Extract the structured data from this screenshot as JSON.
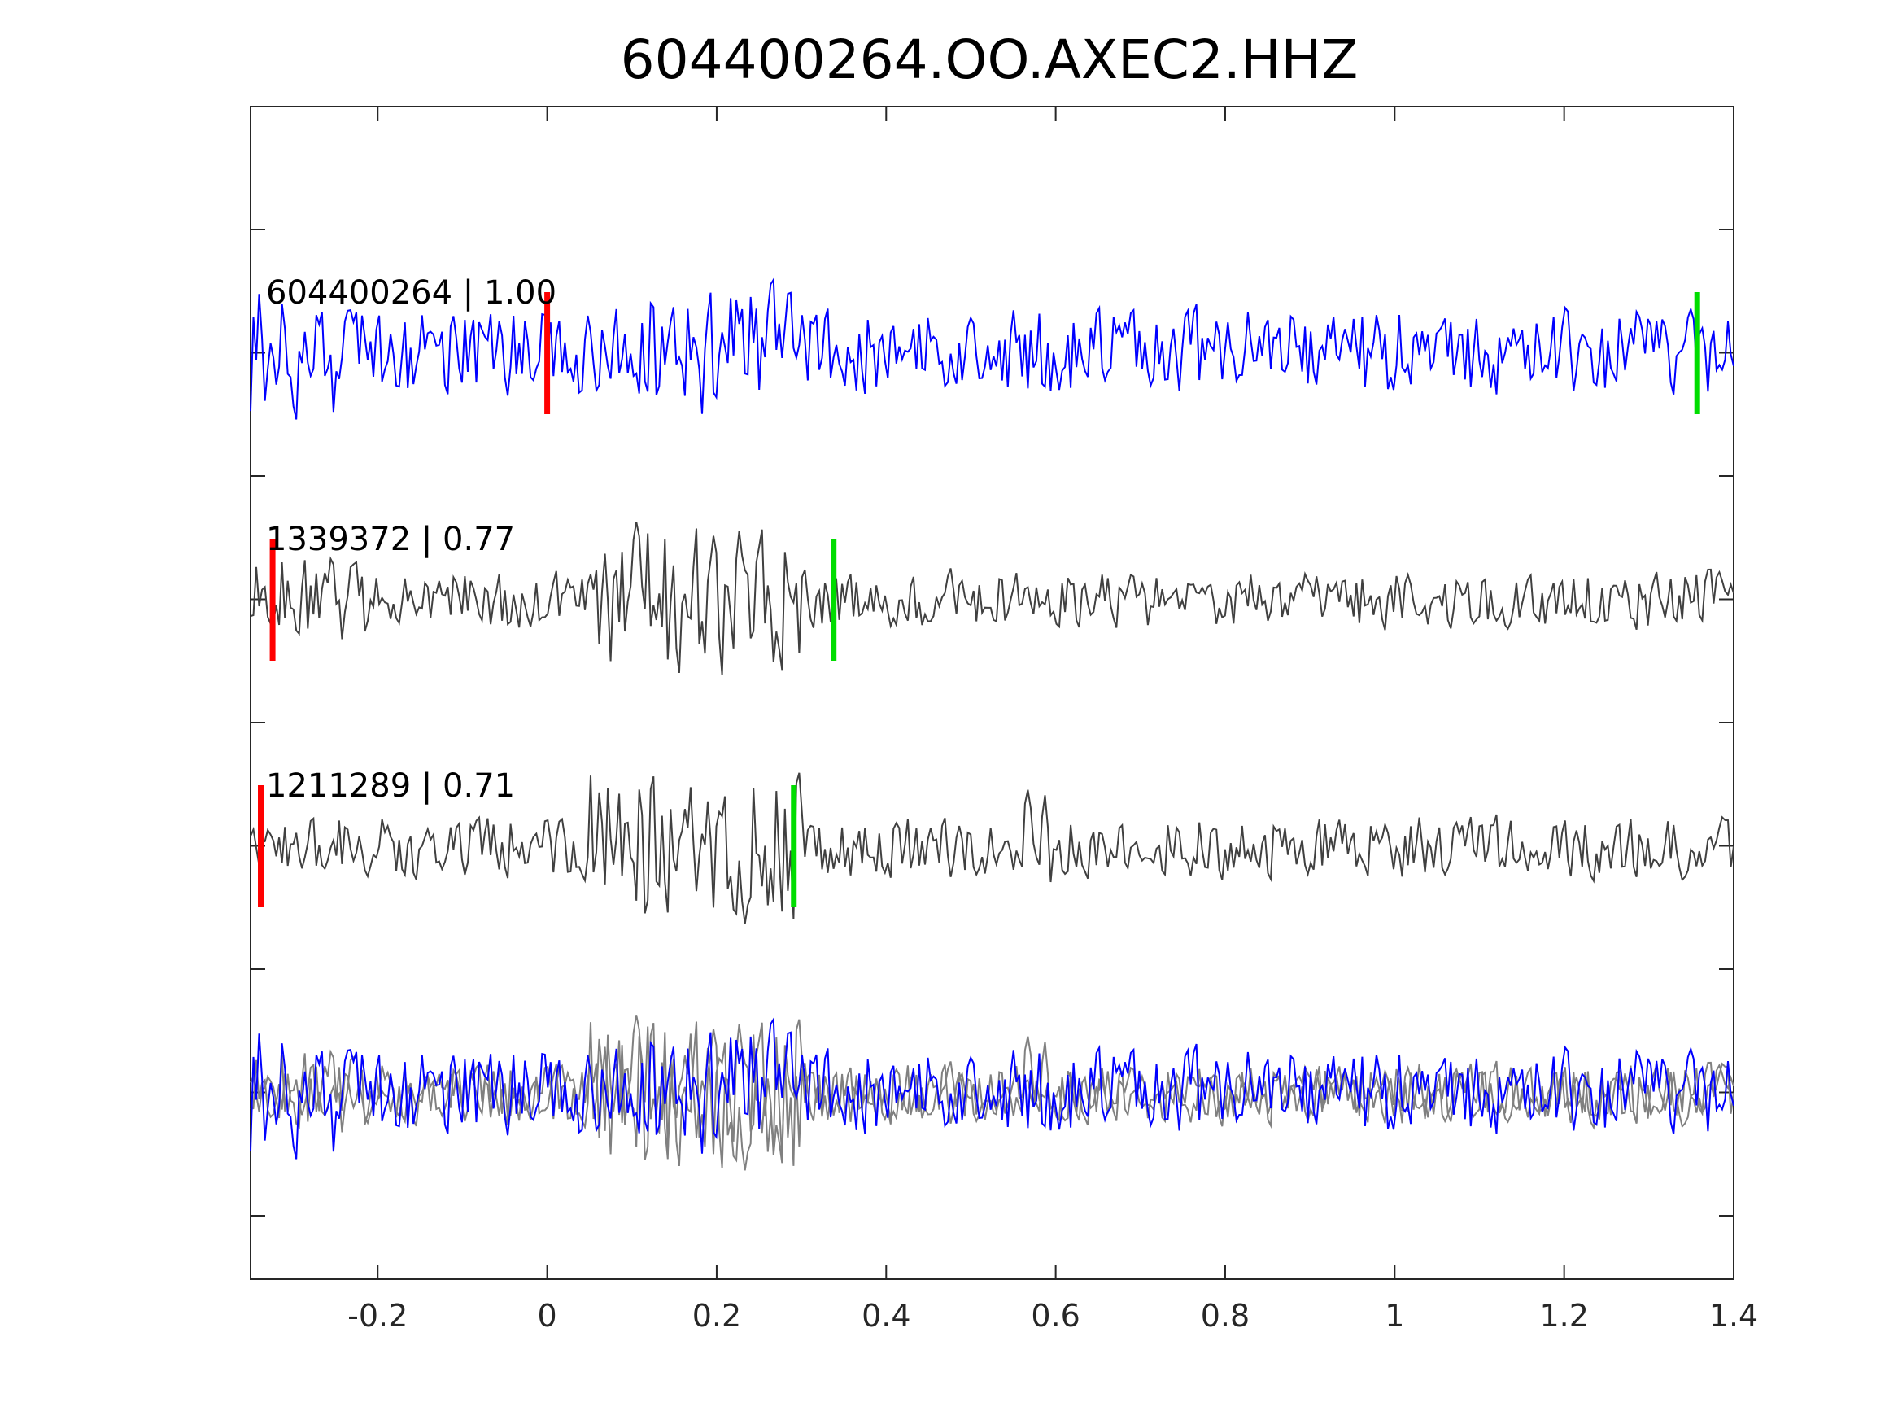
{
  "chart_data": {
    "type": "line",
    "title": "604400264.OO.AXEC2.HHZ",
    "xlabel": "",
    "ylabel": "",
    "xlim": [
      -0.35,
      1.4
    ],
    "x_ticks": [
      -0.2,
      0,
      0.2,
      0.4,
      0.6,
      0.8,
      1,
      1.2,
      1.4
    ],
    "x_tick_labels": [
      "-0.2",
      "0",
      "0.2",
      "0.4",
      "0.6",
      "0.8",
      "1",
      "1.2",
      "1.4"
    ],
    "y_tick_labels_visible": false,
    "grid": false,
    "legend": "none",
    "traces": [
      {
        "label": "604400264 | 1.00",
        "id": "604400264",
        "correlation": 1.0,
        "color": "#0000ff",
        "p_pick": 0.0,
        "s_pick": 1.357
      },
      {
        "label": "1339372 | 0.77",
        "id": "1339372",
        "correlation": 0.77,
        "color": "#404040",
        "p_pick": -0.324,
        "s_pick": 0.338
      },
      {
        "label": "1211289 | 0.71",
        "id": "1211289",
        "correlation": 0.71,
        "color": "#404040",
        "p_pick": -0.338,
        "s_pick": 0.291
      }
    ],
    "overlay_colors": [
      "#0000ff",
      "#808080",
      "#808080"
    ],
    "pick_colors": {
      "p": "#ff0000",
      "s": "#00dd00"
    }
  }
}
